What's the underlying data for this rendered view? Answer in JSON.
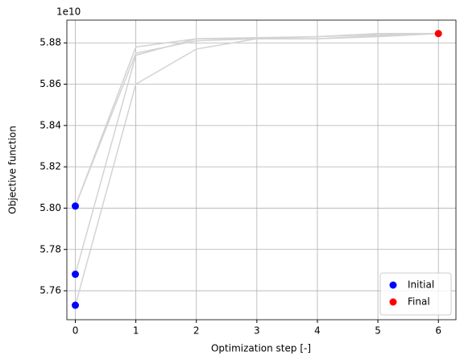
{
  "chart_data": {
    "type": "line",
    "x_label": "Optimization step [-]",
    "y_label": "Objective function",
    "y_offset_label": "1e10",
    "x": [
      0,
      1,
      2,
      3,
      4,
      5,
      6
    ],
    "series": [
      {
        "color": "#d3d3d3",
        "values": [
          5.801,
          5.878,
          5.882,
          5.882,
          5.883,
          5.884,
          5.8845
        ]
      },
      {
        "color": "#d3d3d3",
        "values": [
          5.801,
          5.875,
          5.881,
          5.882,
          5.882,
          5.883,
          5.8845
        ]
      },
      {
        "color": "#d3d3d3",
        "values": [
          5.768,
          5.874,
          5.882,
          5.8825,
          5.883,
          5.8845,
          5.8845
        ]
      },
      {
        "color": "#d3d3d3",
        "values": [
          5.753,
          5.86,
          5.877,
          5.882,
          5.882,
          5.8835,
          5.8845
        ]
      }
    ],
    "markers": [
      {
        "name": "Initial",
        "color": "#0000ff",
        "x": [
          0,
          0,
          0
        ],
        "values": [
          5.801,
          5.768,
          5.753
        ]
      },
      {
        "name": "Final",
        "color": "#ff0000",
        "x": [
          6
        ],
        "values": [
          5.8845
        ]
      }
    ],
    "xlim": [
      -0.14,
      6.29
    ],
    "ylim": [
      5.746,
      5.891
    ],
    "xticks": [
      0,
      1,
      2,
      3,
      4,
      5,
      6
    ],
    "yticks": [
      5.76,
      5.78,
      {
        "value": 5.8,
        "label": "5.80"
      },
      5.82,
      5.84,
      5.86,
      5.88
    ],
    "grid": true,
    "legend_position": "lower-right"
  }
}
